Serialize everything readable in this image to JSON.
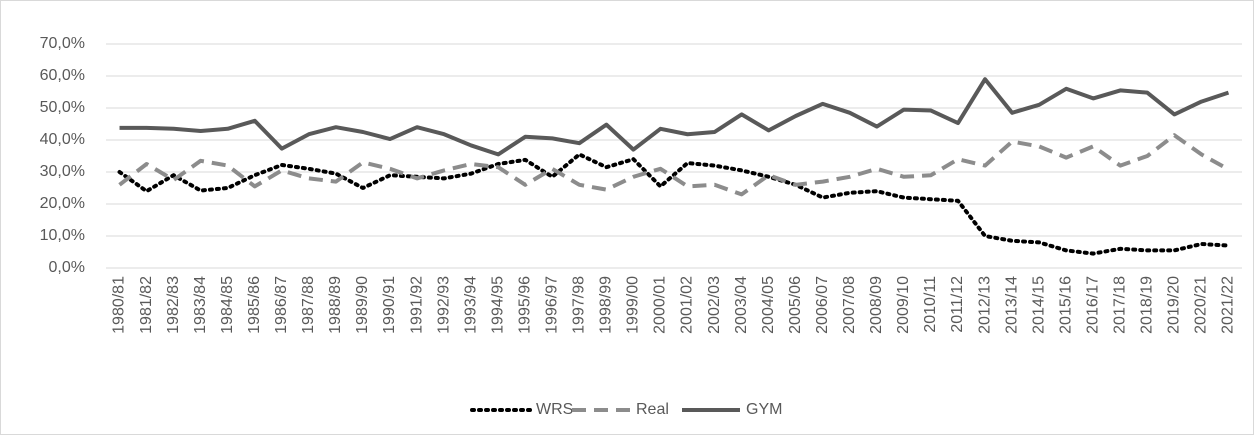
{
  "chart_data": {
    "type": "line",
    "legend": "bottom",
    "grid": true,
    "categories": [
      "1980/81",
      "1981/82",
      "1982/83",
      "1983/84",
      "1984/85",
      "1985/86",
      "1986/87",
      "1987/88",
      "1988/89",
      "1989/90",
      "1990/91",
      "1991/92",
      "1992/93",
      "1993/94",
      "1994/95",
      "1995/96",
      "1996/97",
      "1997/98",
      "1998/99",
      "1999/00",
      "2000/01",
      "2001/02",
      "2002/03",
      "2003/04",
      "2004/05",
      "2005/06",
      "2006/07",
      "2007/08",
      "2008/09",
      "2009/10",
      "2010/11",
      "2011/12",
      "2012/13",
      "2013/14",
      "2014/15",
      "2015/16",
      "2016/17",
      "2017/18",
      "2018/19",
      "2019/20",
      "2020/21",
      "2021/22"
    ],
    "series": [
      {
        "name": "WRS",
        "color": "#000000",
        "style": "dotted",
        "values": [
          30,
          24,
          29,
          24.2,
          25,
          29,
          32.2,
          31,
          29.5,
          25,
          29,
          28.5,
          28,
          29.5,
          32.5,
          33.8,
          28.5,
          35.5,
          31.5,
          34,
          25.5,
          32.8,
          32,
          30.5,
          28.5,
          26,
          22,
          23.5,
          24,
          22,
          21.5,
          21,
          10,
          8.5,
          8,
          5.5,
          4.5,
          6,
          5.5,
          5.5,
          7.5,
          7
        ]
      },
      {
        "name": "Real",
        "color": "#8c8c8c",
        "style": "dashed",
        "values": [
          26,
          32.5,
          27.5,
          33.5,
          32,
          25.5,
          30.5,
          28,
          27,
          33,
          31,
          28,
          30.5,
          32.5,
          31.5,
          26,
          31,
          26,
          24.5,
          28.5,
          31,
          25.5,
          26,
          23,
          29,
          26,
          27,
          28.5,
          31,
          28.5,
          29,
          34,
          32,
          39.5,
          38,
          34.5,
          38,
          32,
          35,
          41.5,
          35.5,
          30.8
        ]
      },
      {
        "name": "GYM",
        "color": "#595959",
        "style": "solid",
        "values": [
          43.8,
          43.8,
          43.5,
          42.8,
          43.5,
          46,
          37.3,
          41.8,
          44,
          42.5,
          40.3,
          44,
          41.8,
          38.3,
          35.5,
          41,
          40.5,
          39,
          44.8,
          37,
          43.5,
          41.8,
          42.5,
          48,
          43,
          47.5,
          51.3,
          48.5,
          44.2,
          49.5,
          49.2,
          45.3,
          59,
          48.5,
          51,
          56,
          53,
          55.5,
          54.8,
          48,
          52,
          54.8
        ]
      }
    ],
    "ylim": [
      0,
      70
    ],
    "yticks": [
      {
        "value": 0,
        "label": "0,0%"
      },
      {
        "value": 10,
        "label": "10,0%"
      },
      {
        "value": 20,
        "label": "20,0%"
      },
      {
        "value": 30,
        "label": "30,0%"
      },
      {
        "value": 40,
        "label": "40,0%"
      },
      {
        "value": 50,
        "label": "50,0%"
      },
      {
        "value": 60,
        "label": "60,0%"
      },
      {
        "value": 70,
        "label": "70,0%"
      }
    ]
  }
}
